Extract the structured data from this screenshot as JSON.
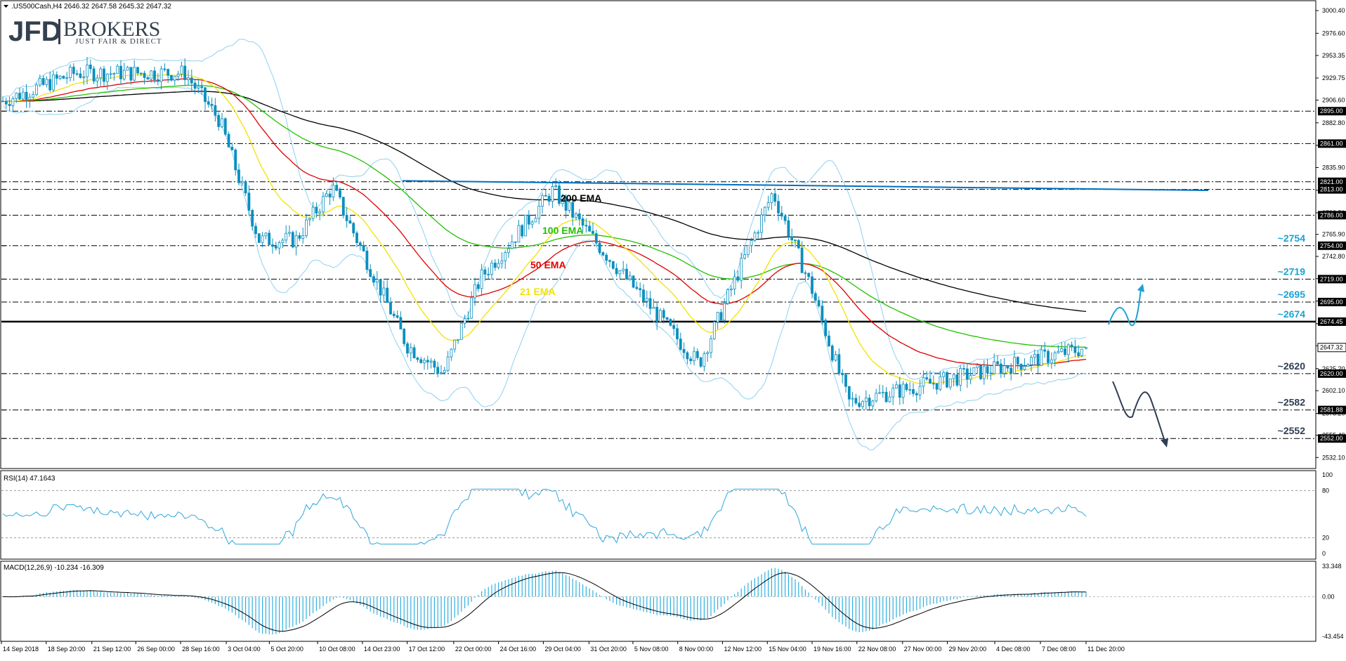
{
  "header": {
    "title": ".US500Cash,H4  2646.32 2647.58 2645.32 2647.32",
    "logo_jfd": "JFD",
    "logo_brokers": "BROKERS",
    "logo_tagline": "JUST FAIR & DIRECT"
  },
  "panes": {
    "rsi_label": "RSI(14) 47.1643",
    "macd_label": "MACD(12,26,9) -10.234 -16.309"
  },
  "colors": {
    "candle": "#0b8fbf",
    "ema21": "#f2e205",
    "ema50": "#e00000",
    "ema100": "#22c000",
    "ema200": "#000000",
    "bollinger": "#8fd0f0",
    "trendline": "#0070c0",
    "level_label": "#1aa3d4",
    "scenario_up": "#1aa3d4",
    "scenario_down": "#2e3d52",
    "rsi_line": "#2fa8dc",
    "macd_hist": "#2fb0e0",
    "macd_signal": "#000000"
  },
  "chart_data": [
    {
      "type": "candlestick",
      "title": ".US500Cash,H4",
      "symbol": ".US500Cash",
      "timeframe": "H4",
      "last_bar": {
        "open": 2646.32,
        "high": 2647.58,
        "low": 2645.32,
        "close": 2647.32
      },
      "ylim": [
        2522,
        3010
      ],
      "y_ticks": [
        "3000.40",
        "2976.60",
        "2953.35",
        "2929.75",
        "2906.60",
        "2882.80",
        "2859.20",
        "2835.90",
        "2812.10",
        "2788.50",
        "2765.90",
        "2742.80",
        "2719.50",
        "2696.00",
        "2672.30",
        "2649.20",
        "2625.20",
        "2602.10",
        "2578.20",
        "2555.40",
        "2532.10"
      ],
      "x_ticks": [
        "14 Sep 2018",
        "18 Sep 20:00",
        "21 Sep 12:00",
        "26 Sep 00:00",
        "28 Sep 16:00",
        "3 Oct 04:00",
        "5 Oct 20:00",
        "10 Oct 08:00",
        "14 Oct 23:00",
        "17 Oct 12:00",
        "22 Oct 00:00",
        "24 Oct 16:00",
        "29 Oct 04:00",
        "31 Oct 20:00",
        "5 Nov 08:00",
        "8 Nov 00:00",
        "12 Nov 12:00",
        "15 Nov 04:00",
        "19 Nov 16:00",
        "22 Nov 08:00",
        "27 Nov 00:00",
        "29 Nov 20:00",
        "4 Dec 08:00",
        "7 Dec 08:00",
        "11 Dec 20:00"
      ],
      "levels": [
        {
          "value": 2895.0,
          "label": "2895.00",
          "annotation": ""
        },
        {
          "value": 2861.0,
          "label": "2861.00",
          "annotation": ""
        },
        {
          "value": 2821.0,
          "label": "2821.00",
          "annotation": ""
        },
        {
          "value": 2813.0,
          "label": "2813.00",
          "annotation": ""
        },
        {
          "value": 2786.0,
          "label": "2786.00",
          "annotation": ""
        },
        {
          "value": 2754.0,
          "label": "2754.00",
          "annotation": "~2754"
        },
        {
          "value": 2719.0,
          "label": "2719.00",
          "annotation": "~2719"
        },
        {
          "value": 2695.0,
          "label": "2695.00",
          "annotation": "~2695"
        },
        {
          "value": 2674.45,
          "label": "2674.45",
          "annotation": "~2674"
        },
        {
          "value": 2620.0,
          "label": "2620.00",
          "annotation": "~2620"
        },
        {
          "value": 2581.88,
          "label": "2581.88",
          "annotation": "~2582"
        },
        {
          "value": 2552.0,
          "label": "2552.00",
          "annotation": "~2552"
        }
      ],
      "current_price": {
        "value": 2647.32,
        "label": "2647.32"
      },
      "trendline": {
        "from": {
          "x": "16 Oct",
          "y": 2822
        },
        "to": {
          "x": "13 Dec",
          "y": 2812
        }
      },
      "ema_labels": [
        {
          "name": "200 EMA",
          "color": "#000000"
        },
        {
          "name": "100 EMA",
          "color": "#22c000"
        },
        {
          "name": "50 EMA",
          "color": "#e00000"
        },
        {
          "name": "21 EMA",
          "color": "#f2e205"
        }
      ],
      "key_points": [
        {
          "x": "14 Sep 2018",
          "close": 2905
        },
        {
          "x": "21 Sep 12:00",
          "close": 2935
        },
        {
          "x": "3 Oct 04:00",
          "close": 2935
        },
        {
          "x": "5 Oct 20:00",
          "close": 2885
        },
        {
          "x": "10 Oct 08:00",
          "close": 2760
        },
        {
          "x": "14 Oct 23:00",
          "close": 2760
        },
        {
          "x": "17 Oct 12:00",
          "close": 2815
        },
        {
          "x": "24 Oct 16:00",
          "close": 2650
        },
        {
          "x": "29 Oct 04:00",
          "close": 2620
        },
        {
          "x": "31 Oct 20:00",
          "close": 2720
        },
        {
          "x": "8 Nov 00:00",
          "close": 2812
        },
        {
          "x": "15 Nov 04:00",
          "close": 2720
        },
        {
          "x": "22 Nov 08:00",
          "close": 2630
        },
        {
          "x": "29 Nov 20:00",
          "close": 2810
        },
        {
          "x": "4 Dec 08:00",
          "close": 2710
        },
        {
          "x": "7 Dec 08:00",
          "close": 2590
        },
        {
          "x": "11 Dec 20:00",
          "close": 2647
        }
      ],
      "scenarios": [
        {
          "direction": "up",
          "target": 2719
        },
        {
          "direction": "down",
          "target": 2552
        }
      ]
    },
    {
      "type": "line",
      "title": "RSI(14) 47.1643",
      "series": [
        {
          "name": "RSI(14)",
          "last": 47.1643
        }
      ],
      "ylim": [
        0,
        100
      ],
      "y_ticks": [
        "100",
        "80",
        "20",
        "0"
      ],
      "levels": [
        80,
        20
      ]
    },
    {
      "type": "bar",
      "title": "MACD(12,26,9) -10.234 -16.309",
      "series": [
        {
          "name": "MACD",
          "last": -10.234
        },
        {
          "name": "Signal",
          "last": -16.309
        }
      ],
      "ylim": [
        -43.454,
        33.348
      ],
      "y_ticks": [
        "33.348",
        "0.00",
        "-43.454"
      ]
    }
  ]
}
